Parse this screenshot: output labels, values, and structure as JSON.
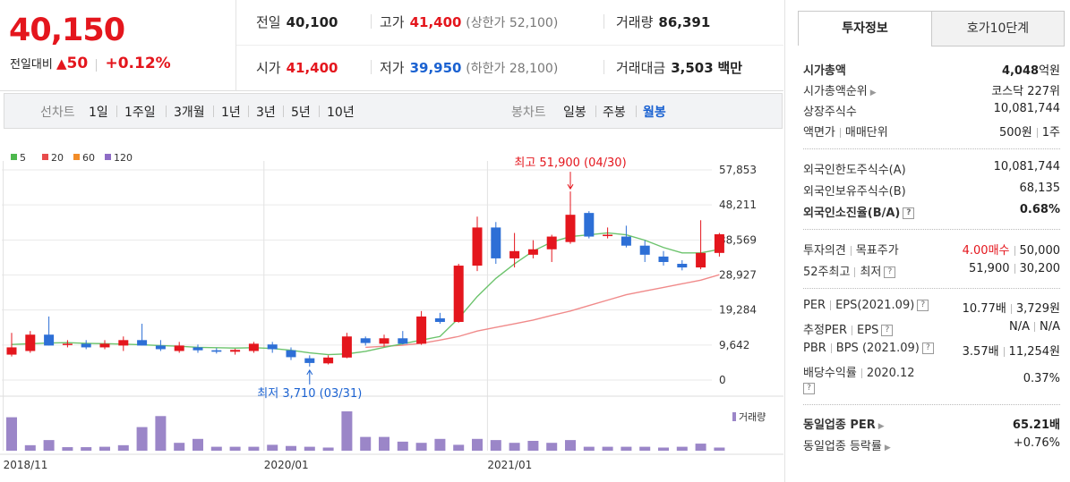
{
  "price": {
    "current": "40,150",
    "change_label": "전일대비",
    "change_arrow": "▲",
    "change_value": "50",
    "change_pct": "+0.12%"
  },
  "quote": {
    "prev_label": "전일",
    "prev_value": "40,100",
    "high_label": "고가",
    "high_value": "41,400",
    "upper_limit": "(상한가 52,100)",
    "volume_label": "거래량",
    "volume_value": "86,391",
    "open_label": "시가",
    "open_value": "41,400",
    "low_label": "저가",
    "low_value": "39,950",
    "lower_limit": "(하한가 28,100)",
    "amount_label": "거래대금",
    "amount_value": "3,503",
    "amount_unit": "백만"
  },
  "period_bar": {
    "line_label": "선차트",
    "line_periods": [
      "1일",
      "1주일",
      "3개월",
      "1년",
      "3년",
      "5년",
      "10년"
    ],
    "candle_label": "봉차트",
    "candle_periods": [
      "일봉",
      "주봉",
      "월봉"
    ],
    "active_candle": "월봉"
  },
  "chart_data": {
    "type": "candlestick",
    "legend": [
      {
        "name": "5",
        "color": "#4db84d"
      },
      {
        "name": "20",
        "color": "#e84b4b"
      },
      {
        "name": "60",
        "color": "#f28c28"
      },
      {
        "name": "120",
        "color": "#8e6cc6"
      }
    ],
    "y_ticks": [
      "57,853",
      "48,211",
      "38,569",
      "28,927",
      "19,284",
      "9,642",
      "0"
    ],
    "ylim": [
      0,
      57853
    ],
    "x_ticks": [
      {
        "label": "2018/11",
        "index": 0
      },
      {
        "label": "2020/01",
        "index": 14
      },
      {
        "label": "2021/01",
        "index": 26
      }
    ],
    "up_color": "#e4161d",
    "down_color": "#2d6fd6",
    "candles": [
      {
        "o": 7000,
        "h": 13000,
        "l": 6500,
        "c": 9000
      },
      {
        "o": 8000,
        "h": 13500,
        "l": 7500,
        "c": 12500
      },
      {
        "o": 12500,
        "h": 17500,
        "l": 9500,
        "c": 9500
      },
      {
        "o": 10000,
        "h": 11000,
        "l": 9000,
        "c": 10000
      },
      {
        "o": 10000,
        "h": 11000,
        "l": 8500,
        "c": 9000
      },
      {
        "o": 9000,
        "h": 11000,
        "l": 8500,
        "c": 10000
      },
      {
        "o": 9500,
        "h": 12000,
        "l": 8000,
        "c": 11000
      },
      {
        "o": 11000,
        "h": 15500,
        "l": 9500,
        "c": 9500
      },
      {
        "o": 9500,
        "h": 11000,
        "l": 8000,
        "c": 8500
      },
      {
        "o": 8000,
        "h": 10500,
        "l": 7500,
        "c": 9500
      },
      {
        "o": 9000,
        "h": 9800,
        "l": 7500,
        "c": 8200
      },
      {
        "o": 8200,
        "h": 8800,
        "l": 7300,
        "c": 7800
      },
      {
        "o": 7800,
        "h": 8600,
        "l": 7000,
        "c": 8300
      },
      {
        "o": 8000,
        "h": 10500,
        "l": 7500,
        "c": 10000
      },
      {
        "o": 9800,
        "h": 10500,
        "l": 7500,
        "c": 8500
      },
      {
        "o": 8200,
        "h": 9000,
        "l": 5500,
        "c": 6300
      },
      {
        "o": 6000,
        "h": 6800,
        "l": 3710,
        "c": 4700
      },
      {
        "o": 4600,
        "h": 6800,
        "l": 4300,
        "c": 6200
      },
      {
        "o": 6200,
        "h": 13000,
        "l": 6000,
        "c": 12000
      },
      {
        "o": 11500,
        "h": 12000,
        "l": 9500,
        "c": 10200
      },
      {
        "o": 10000,
        "h": 12500,
        "l": 9200,
        "c": 11500
      },
      {
        "o": 11500,
        "h": 13500,
        "l": 9800,
        "c": 10000
      },
      {
        "o": 10000,
        "h": 19000,
        "l": 9700,
        "c": 17500
      },
      {
        "o": 17000,
        "h": 18500,
        "l": 15500,
        "c": 16000
      },
      {
        "o": 16000,
        "h": 32000,
        "l": 15800,
        "c": 31500
      },
      {
        "o": 31500,
        "h": 45000,
        "l": 30000,
        "c": 42000
      },
      {
        "o": 42000,
        "h": 43500,
        "l": 32000,
        "c": 33500
      },
      {
        "o": 33500,
        "h": 40500,
        "l": 31000,
        "c": 35500
      },
      {
        "o": 34500,
        "h": 38500,
        "l": 33500,
        "c": 36000
      },
      {
        "o": 36000,
        "h": 40000,
        "l": 32500,
        "c": 39500
      },
      {
        "o": 38000,
        "h": 51900,
        "l": 37500,
        "c": 45500
      },
      {
        "o": 46000,
        "h": 46500,
        "l": 39000,
        "c": 39500
      },
      {
        "o": 40000,
        "h": 42000,
        "l": 39000,
        "c": 40000
      },
      {
        "o": 39500,
        "h": 42500,
        "l": 36500,
        "c": 37000
      },
      {
        "o": 37000,
        "h": 38500,
        "l": 32500,
        "c": 34500
      },
      {
        "o": 34000,
        "h": 35500,
        "l": 31500,
        "c": 32500
      },
      {
        "o": 32000,
        "h": 33000,
        "l": 30200,
        "c": 31000
      },
      {
        "o": 31000,
        "h": 44000,
        "l": 30500,
        "c": 35000
      },
      {
        "o": 35000,
        "h": 40500,
        "l": 34000,
        "c": 40150
      }
    ],
    "ma5": [
      9800,
      10000,
      10200,
      10300,
      10100,
      10000,
      9900,
      9700,
      9500,
      9300,
      9000,
      8900,
      8800,
      8900,
      8700,
      8200,
      7500,
      7000,
      7200,
      7900,
      9000,
      10000,
      11000,
      12000,
      17000,
      23000,
      28000,
      32000,
      35500,
      38000,
      39500,
      40000,
      40500,
      40000,
      38500,
      36500,
      35000,
      35000,
      36000
    ],
    "ma20": [
      null,
      null,
      null,
      null,
      null,
      null,
      null,
      null,
      null,
      null,
      null,
      null,
      null,
      null,
      null,
      null,
      null,
      null,
      null,
      9000,
      9300,
      9600,
      10100,
      11000,
      12000,
      13500,
      14500,
      15500,
      16500,
      17800,
      19000,
      20500,
      22000,
      23500,
      24500,
      25500,
      26500,
      27500,
      29000
    ],
    "annotations": {
      "max": "최고 51,900 (04/30)",
      "min": "최저 3,710 (03/31)"
    },
    "volume_label": "거래량",
    "volume": [
      85,
      14,
      27,
      9,
      9,
      10,
      14,
      60,
      88,
      20,
      30,
      10,
      10,
      10,
      15,
      12,
      10,
      8,
      100,
      35,
      35,
      23,
      20,
      30,
      15,
      30,
      27,
      20,
      25,
      20,
      27,
      10,
      10,
      10,
      10,
      8,
      10,
      18,
      8
    ]
  },
  "info": {
    "tabs": {
      "invest": "투자정보",
      "hoga": "호가10단계"
    },
    "rows_a": [
      {
        "k": "시가총액",
        "v_num": "4,048",
        "v_unit": "억원"
      },
      {
        "k": "시가총액순위",
        "v": "코스닥 227위"
      },
      {
        "k": "상장주식수",
        "v": "10,081,744"
      },
      {
        "k1": "액면가",
        "k2": "매매단위",
        "v1": "500원",
        "v2": "1주"
      }
    ],
    "rows_b": [
      {
        "k": "외국인한도주식수(A)",
        "v": "10,081,744"
      },
      {
        "k": "외국인보유주식수(B)",
        "v": "68,135"
      },
      {
        "k": "외국인소진율(B/A)",
        "v": "0.68%"
      }
    ],
    "opinion": {
      "k1": "투자의견",
      "k2": "목표주가",
      "v1": "4.00매수",
      "v2": "50,000"
    },
    "range52": {
      "k1": "52주최고",
      "k2": "최저",
      "v1": "51,900",
      "v2": "30,200"
    },
    "per": {
      "k1": "PER",
      "k2": "EPS(2021.09)",
      "v1": "10.77배",
      "v2": "3,729원"
    },
    "est_per": {
      "k1": "추정PER",
      "k2": "EPS",
      "v1": "N/A",
      "v2": "N/A"
    },
    "pbr": {
      "k1": "PBR",
      "k2": "BPS (2021.09)",
      "v1": "3.57배",
      "v2": "11,254원"
    },
    "dividend": {
      "k1": "배당수익률",
      "k2": "2020.12",
      "v": "0.37%"
    },
    "industry_per": {
      "k": "동일업종 PER",
      "v": "65.21배"
    },
    "industry_chg": {
      "k": "동일업종 등락률",
      "v": "+0.76%"
    }
  }
}
